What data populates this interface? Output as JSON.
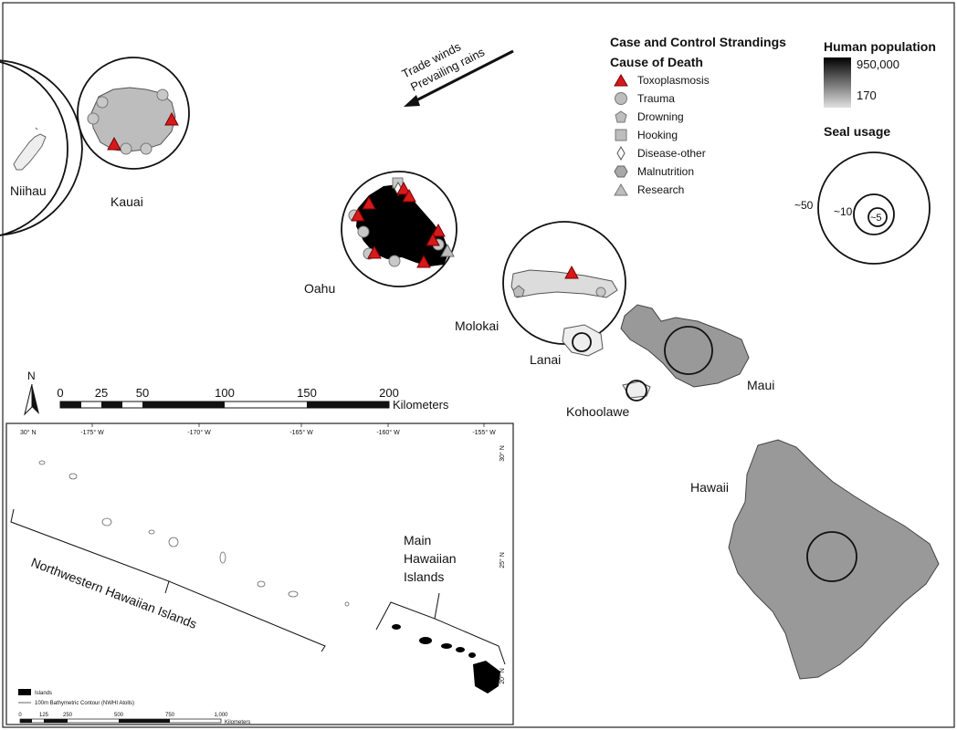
{
  "islands": {
    "niihau": "Niihau",
    "kauai": "Kauai",
    "oahu": "Oahu",
    "molokai": "Molokai",
    "lanai": "Lanai",
    "maui": "Maui",
    "kahoolawe": "Kohoolawe",
    "hawaii": "Hawaii"
  },
  "arrow_label": {
    "line1": "Trade winds",
    "line2": "Prevailing rains"
  },
  "legend": {
    "title1": "Case and Control Strandings",
    "title2": "Cause of Death",
    "items": [
      {
        "label": "Toxoplasmosis",
        "icon": "red-triangle-icon",
        "color": "#d7191c"
      },
      {
        "label": "Trauma",
        "icon": "grey-circle-icon",
        "color": "#bdbdbd"
      },
      {
        "label": "Drowning",
        "icon": "grey-pentagon-icon",
        "color": "#bdbdbd"
      },
      {
        "label": "Hooking",
        "icon": "grey-square-icon",
        "color": "#bdbdbd"
      },
      {
        "label": "Disease-other",
        "icon": "diamond-outline-icon",
        "color": "#ffffff"
      },
      {
        "label": "Malnutrition",
        "icon": "grey-hexagon-icon",
        "color": "#a8a8a8"
      },
      {
        "label": "Research",
        "icon": "grey-triangle-icon",
        "color": "#bdbdbd"
      }
    ]
  },
  "population": {
    "title": "Human population",
    "max": "950,000",
    "min": "170",
    "color_max": "#000000",
    "color_min": "#e0e0e0"
  },
  "seal_usage": {
    "title": "Seal usage",
    "large": "~50",
    "medium": "~10",
    "small": "~5"
  },
  "scale": {
    "north": "N",
    "ticks": [
      "0",
      "25",
      "50",
      "100",
      "150",
      "200"
    ],
    "unit": "Kilometers"
  },
  "inset": {
    "lat_labels": [
      "30° N",
      "25° N",
      "20° N"
    ],
    "top_corner_label": "30° N",
    "lon_labels": [
      "-175° W",
      "-170° W",
      "-165° W",
      "-160° W",
      "-155° W"
    ],
    "nwhi_label": "Northwestern Hawaiian Islands",
    "mhi_label_line1": "Main",
    "mhi_label_line2": "Hawaiian",
    "mhi_label_line3": "Islands",
    "legend_islands": "Islands",
    "legend_contour": "100m Bathymetric Contour (NWHI Atolls)",
    "scale_ticks": [
      "0",
      "125",
      "250",
      "500",
      "750",
      "1,000"
    ],
    "scale_unit": "Kilometers"
  }
}
